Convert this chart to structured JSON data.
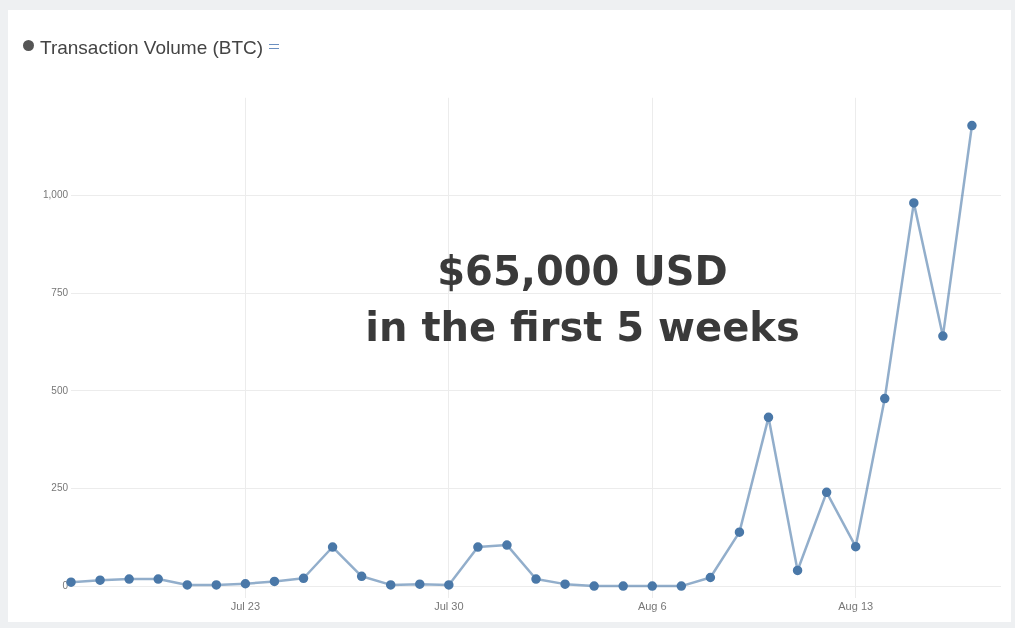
{
  "chart_data": {
    "type": "line",
    "title": "Transaction Volume (BTC)",
    "x": [
      "--07-17",
      "--07-18",
      "--07-19",
      "--07-20",
      "--07-21",
      "--07-22",
      "--07-23",
      "--07-24",
      "--07-25",
      "--07-26",
      "--07-27",
      "--07-28",
      "--07-29",
      "--07-30",
      "--07-31",
      "--08-01",
      "--08-02",
      "--08-03",
      "--08-04",
      "--08-05",
      "--08-06",
      "--08-07",
      "--08-08",
      "--08-09",
      "--08-10",
      "--08-11",
      "--08-12",
      "--08-13",
      "--08-14",
      "--08-15",
      "--08-16",
      "--08-17"
    ],
    "series": [
      {
        "color": "#4a78a8",
        "values": [
          10,
          15,
          18,
          18,
          3,
          3,
          6,
          12,
          20,
          100,
          25,
          3,
          5,
          3,
          100,
          105,
          18,
          5,
          0,
          0,
          0,
          0,
          22,
          138,
          432,
          40,
          240,
          101,
          480,
          981,
          640,
          1179
        ]
      }
    ],
    "xlim": [
      "--07-17",
      "--08-18"
    ],
    "xticks": [
      {
        "value": "--07-23",
        "label": "Jul 23"
      },
      {
        "value": "--07-30",
        "label": "Jul 30"
      },
      {
        "value": "--08-06",
        "label": "Aug 6"
      },
      {
        "value": "--08-13",
        "label": "Aug 13"
      }
    ],
    "ylim": [
      -30,
      1250
    ],
    "yticks": [
      0,
      250,
      500,
      750,
      {
        "value": 1000,
        "label": "1,000"
      }
    ],
    "grid": true,
    "legend": false,
    "marker": "circle",
    "line_style": "solid",
    "annotations": [
      "$65,000 USD\nin the first 5 weeks"
    ]
  }
}
